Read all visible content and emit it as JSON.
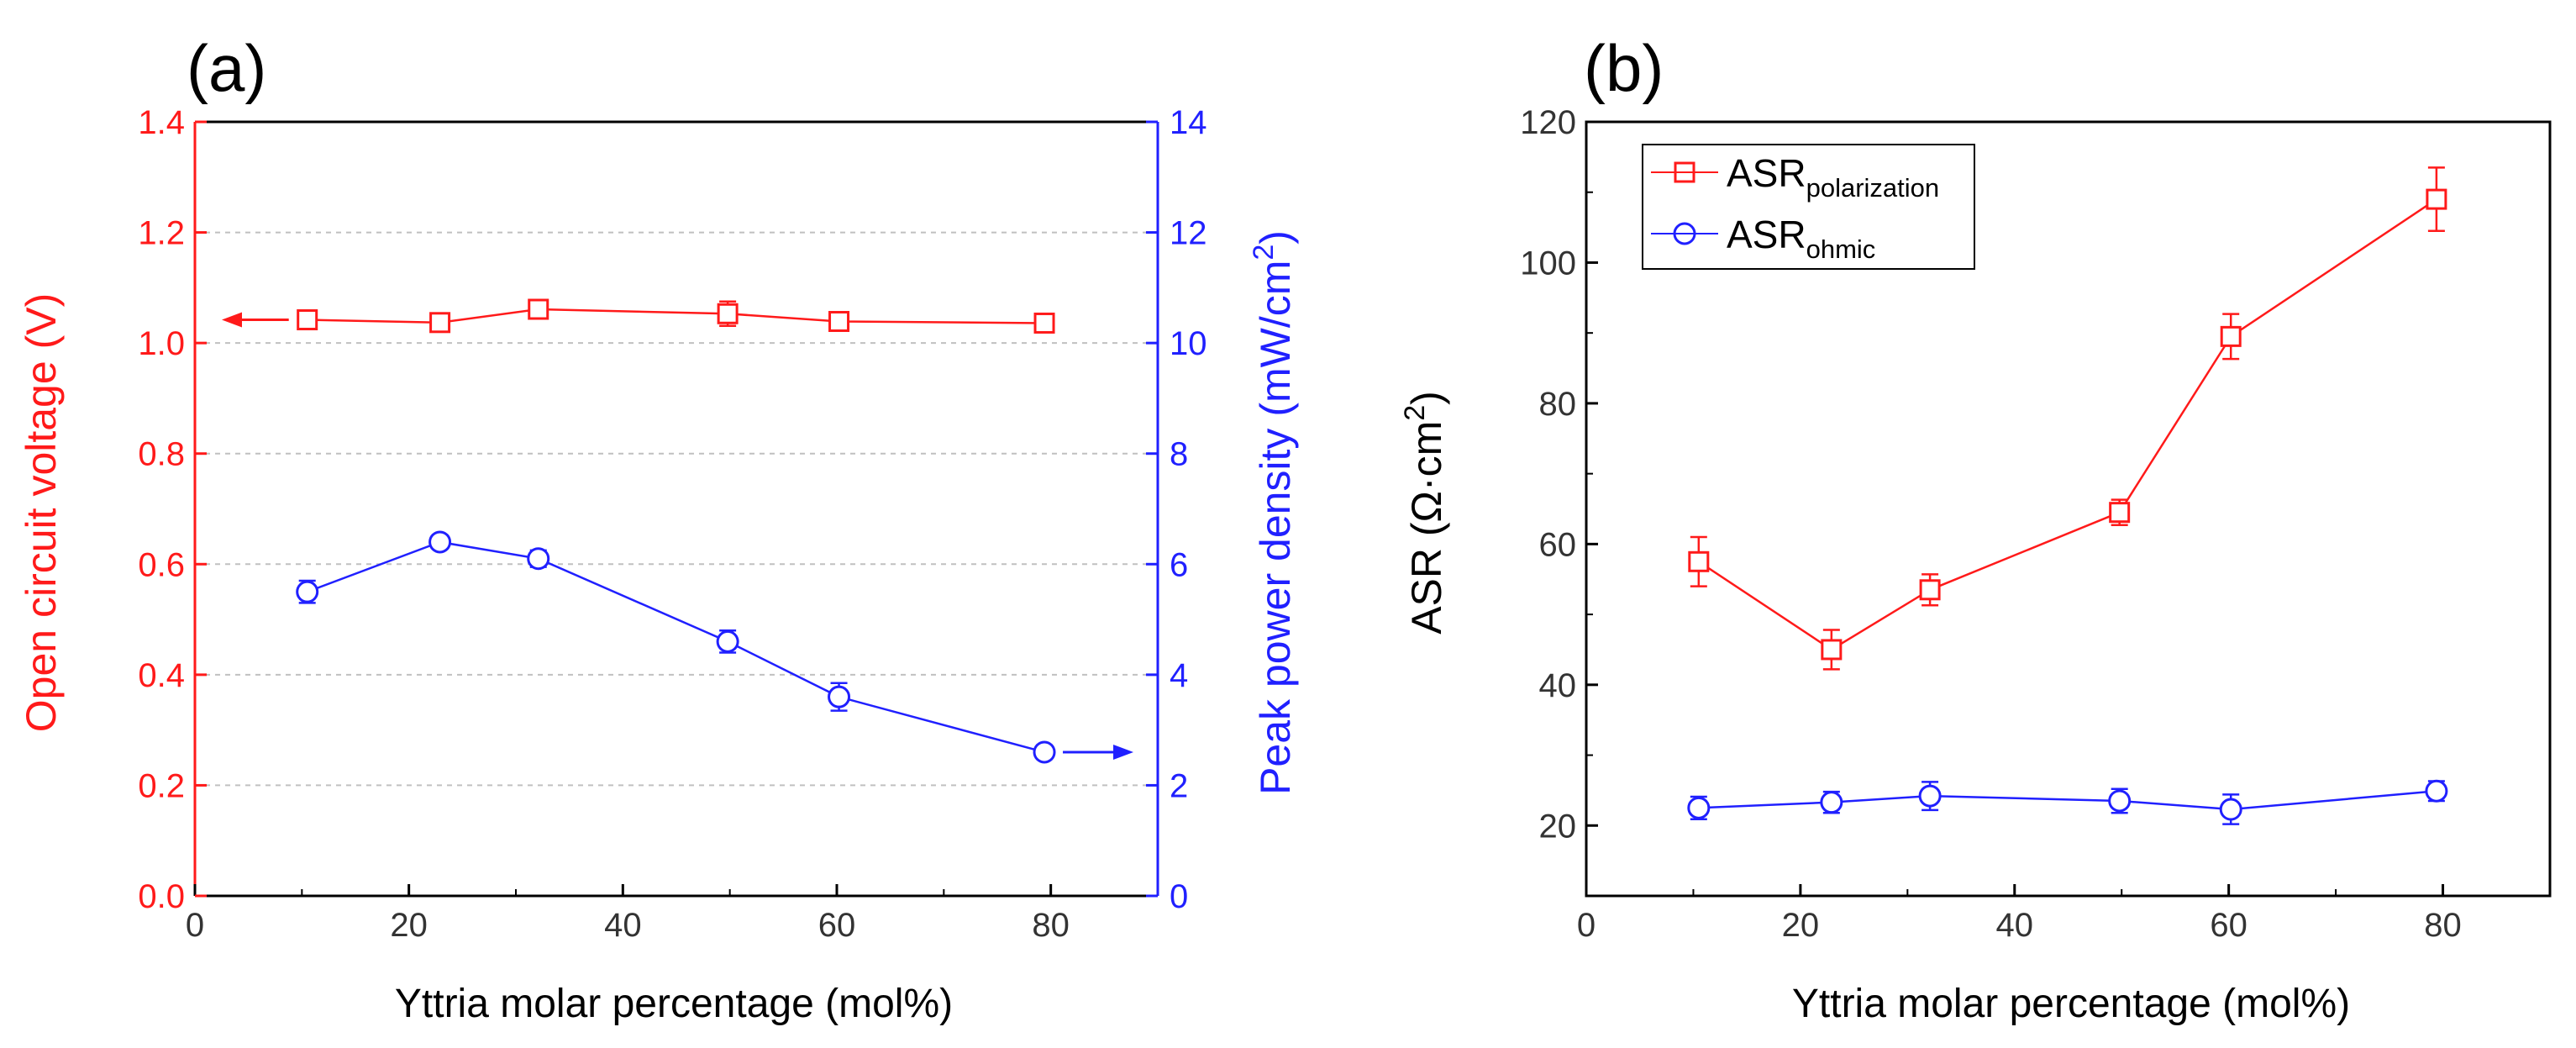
{
  "colors": {
    "red": "#ff1a1a",
    "blue": "#2020ff",
    "axis": "#000000",
    "grid": "#c0c0c0"
  },
  "chart_data": [
    {
      "panel_label": "(a)",
      "type": "line",
      "x": [
        10.5,
        22.9,
        32.1,
        49.8,
        60.2,
        79.4
      ],
      "xlim": [
        0,
        90
      ],
      "xticks": [
        0,
        20,
        40,
        60,
        80
      ],
      "xlabel": "Yttria molar percentage (mol%)",
      "grid": "horizontal dashed",
      "left_axis": {
        "label": "Open circuit voltage (V)",
        "ylim": [
          0,
          1.4
        ],
        "ticks": [
          "0.0",
          "0.2",
          "0.4",
          "0.6",
          "0.8",
          "1.0",
          "1.2",
          "1.4"
        ],
        "color": "#ff1a1a"
      },
      "right_axis": {
        "label_main": "Peak power density (mW/cm",
        "label_sup": "2",
        "label_end": ")",
        "ylim": [
          0,
          14
        ],
        "ticks": [
          "0",
          "2",
          "4",
          "6",
          "8",
          "10",
          "12",
          "14"
        ],
        "color": "#2020ff"
      },
      "series": [
        {
          "name": "Open circuit voltage",
          "axis": "left",
          "marker": "square",
          "color": "#ff1a1a",
          "values": [
            1.042,
            1.037,
            1.061,
            1.053,
            1.039,
            1.036
          ],
          "errors": [
            0.012,
            0.012,
            0.008,
            0.022,
            0.012,
            0.008
          ],
          "arrow": "left"
        },
        {
          "name": "Peak power density",
          "axis": "right",
          "marker": "circle",
          "color": "#2020ff",
          "values": [
            5.5,
            6.4,
            6.1,
            4.6,
            3.6,
            2.6
          ],
          "errors": [
            0.2,
            0.12,
            0.15,
            0.2,
            0.25,
            0.12
          ],
          "arrow": "right"
        }
      ]
    },
    {
      "panel_label": "(b)",
      "type": "line",
      "x": [
        10.5,
        22.9,
        32.1,
        49.8,
        60.2,
        79.4
      ],
      "xlim": [
        0,
        90
      ],
      "xticks": [
        0,
        20,
        40,
        60,
        80
      ],
      "xlabel": "Yttria molar percentage (mol%)",
      "ylim": [
        10,
        120
      ],
      "yticks": [
        20,
        40,
        60,
        80,
        100,
        120
      ],
      "ylabel_main": "ASR (Ω·cm",
      "ylabel_sup": "2",
      "ylabel_end": ")",
      "legend_position": "top-left",
      "series": [
        {
          "name_main": "ASR",
          "name_sub": "polarization",
          "marker": "square",
          "color": "#ff1a1a",
          "values": [
            57.5,
            45.0,
            53.5,
            64.5,
            89.5,
            109.0
          ],
          "errors": [
            3.5,
            2.8,
            2.2,
            1.8,
            3.2,
            4.5
          ]
        },
        {
          "name_main": "ASR",
          "name_sub": "ohmic",
          "marker": "circle",
          "color": "#2020ff",
          "values": [
            22.5,
            23.3,
            24.2,
            23.5,
            22.3,
            24.9
          ],
          "errors": [
            1.6,
            1.5,
            2.0,
            1.7,
            2.1,
            1.4
          ]
        }
      ]
    }
  ]
}
